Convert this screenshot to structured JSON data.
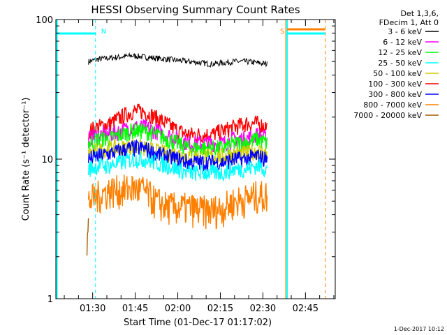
{
  "chart_data": {
    "type": "line",
    "title": "HESSI Observing Summary Count Rates",
    "xlabel": "Start Time (01-Dec-17 01:17:02)",
    "ylabel": "Count Rate (s⁻¹ detector⁻¹)",
    "yscale": "log",
    "ylim": [
      1,
      100
    ],
    "xlim": [
      "01:17:02",
      "02:55:30"
    ],
    "x_ticks": [
      "01:30",
      "01:45",
      "02:00",
      "02:15",
      "02:30",
      "02:45"
    ],
    "y_ticks": [
      "1",
      "10",
      "100"
    ],
    "grid": false,
    "legend_position": "top-right",
    "legend": {
      "header": [
        "Det 1,3,6,",
        "FDecim 1, Att 0"
      ],
      "entries": [
        {
          "label": "3 - 6 keV",
          "color": "#000000"
        },
        {
          "label": "6 - 12 keV",
          "color": "#ff00ff"
        },
        {
          "label": "12 - 25 keV",
          "color": "#00ff00"
        },
        {
          "label": "25 - 50 keV",
          "color": "#00ffff"
        },
        {
          "label": "50 - 100 keV",
          "color": "#cccc00"
        },
        {
          "label": "100 - 300 keV",
          "color": "#ff0000"
        },
        {
          "label": "300 - 800 keV",
          "color": "#0000ff"
        },
        {
          "label": "800 - 7000 keV",
          "color": "#ff8000"
        },
        {
          "label": "7000 - 20000 keV",
          "color": "#a06000"
        }
      ]
    },
    "series": [
      {
        "name": "3 - 6 keV",
        "color": "#000000",
        "x": [
          "01:28:30",
          "01:32",
          "01:36",
          "01:40",
          "01:44",
          "01:48",
          "01:52",
          "01:56",
          "02:00",
          "02:04",
          "02:08",
          "02:12",
          "02:16",
          "02:20",
          "02:24",
          "02:28",
          "02:31:30"
        ],
        "values": [
          50,
          52,
          53,
          54,
          55,
          54,
          53,
          52,
          51,
          50,
          49,
          48,
          49,
          50,
          50,
          49,
          48
        ]
      },
      {
        "name": "100 - 300 keV",
        "color": "#ff0000",
        "x": [
          "01:28:30",
          "01:32",
          "01:36",
          "01:40",
          "01:44",
          "01:48",
          "01:52",
          "01:56",
          "02:00",
          "02:04",
          "02:08",
          "02:12",
          "02:16",
          "02:20",
          "02:24",
          "02:28",
          "02:31:30"
        ],
        "values": [
          16,
          17,
          18,
          20,
          22,
          22,
          20,
          18,
          16,
          15,
          15,
          15,
          16,
          17,
          18,
          18,
          17
        ]
      },
      {
        "name": "6 - 12 keV",
        "color": "#ff00ff",
        "x": [
          "01:28:30",
          "01:32",
          "01:36",
          "01:40",
          "01:44",
          "01:48",
          "01:52",
          "01:56",
          "02:00",
          "02:04",
          "02:08",
          "02:12",
          "02:16",
          "02:20",
          "02:24",
          "02:28",
          "02:31:30"
        ],
        "values": [
          14,
          15,
          15,
          16,
          17,
          17,
          16,
          15,
          14,
          13,
          13,
          13,
          13,
          14,
          14,
          15,
          14
        ]
      },
      {
        "name": "12 - 25 keV",
        "color": "#00ff00",
        "x": [
          "01:28:30",
          "01:32",
          "01:36",
          "01:40",
          "01:44",
          "01:48",
          "01:52",
          "01:56",
          "02:00",
          "02:04",
          "02:08",
          "02:12",
          "02:16",
          "02:20",
          "02:24",
          "02:28",
          "02:31:30"
        ],
        "values": [
          13,
          14,
          14,
          15,
          16,
          16,
          15,
          14,
          13,
          12,
          12,
          12,
          12,
          13,
          13,
          14,
          13
        ]
      },
      {
        "name": "50 - 100 keV",
        "color": "#cccc00",
        "x": [
          "01:28:30",
          "01:32",
          "01:36",
          "01:40",
          "01:44",
          "01:48",
          "01:52",
          "01:56",
          "02:00",
          "02:04",
          "02:08",
          "02:12",
          "02:16",
          "02:20",
          "02:24",
          "02:28",
          "02:31:30"
        ],
        "values": [
          11,
          11.5,
          12,
          12,
          12.5,
          12,
          11.5,
          11,
          11,
          10.5,
          10.5,
          10.5,
          10.5,
          11,
          11,
          11.5,
          11
        ]
      },
      {
        "name": "300 - 800 keV",
        "color": "#0000ff",
        "x": [
          "01:28:30",
          "01:32",
          "01:36",
          "01:40",
          "01:44",
          "01:48",
          "01:52",
          "01:56",
          "02:00",
          "02:04",
          "02:08",
          "02:12",
          "02:16",
          "02:20",
          "02:24",
          "02:28",
          "02:31:30"
        ],
        "values": [
          10,
          10.5,
          11,
          11.5,
          12,
          12,
          11,
          10.5,
          10,
          9.5,
          9.5,
          9.5,
          9.5,
          10,
          10,
          10.5,
          10
        ]
      },
      {
        "name": "25 - 50 keV",
        "color": "#00ffff",
        "x": [
          "01:28:30",
          "01:32",
          "01:36",
          "01:40",
          "01:44",
          "01:48",
          "01:52",
          "01:56",
          "02:00",
          "02:04",
          "02:08",
          "02:12",
          "02:16",
          "02:20",
          "02:24",
          "02:28",
          "02:31:30"
        ],
        "values": [
          8.5,
          9,
          9,
          9.5,
          10,
          10,
          9.5,
          9,
          8.5,
          8,
          8,
          8,
          8,
          8.5,
          8.5,
          9,
          8.5
        ]
      },
      {
        "name": "800 - 7000 keV",
        "color": "#ff8000",
        "x": [
          "01:28:30",
          "01:32",
          "01:36",
          "01:40",
          "01:44",
          "01:48",
          "01:52",
          "01:56",
          "02:00",
          "02:04",
          "02:08",
          "02:12",
          "02:16",
          "02:20",
          "02:24",
          "02:28",
          "02:31:30"
        ],
        "values": [
          5,
          5.5,
          6,
          6,
          6.2,
          6,
          5,
          4.6,
          4.5,
          4.5,
          4.3,
          4.3,
          4.5,
          5,
          5.2,
          5.5,
          5.5
        ]
      },
      {
        "name": "7000 - 20000 keV",
        "color": "#a06000",
        "x": [
          "01:28:00",
          "01:28:30"
        ],
        "values": [
          2,
          4
        ]
      }
    ],
    "annotations": [
      {
        "text": "N",
        "color": "#00ffff",
        "x": "01:31:00",
        "kind": "night start"
      },
      {
        "text": "S",
        "color": "#ff8000",
        "x": "02:38:30",
        "kind": "SAA start"
      }
    ],
    "timestamp": "1-Dec-2017 10:12"
  }
}
